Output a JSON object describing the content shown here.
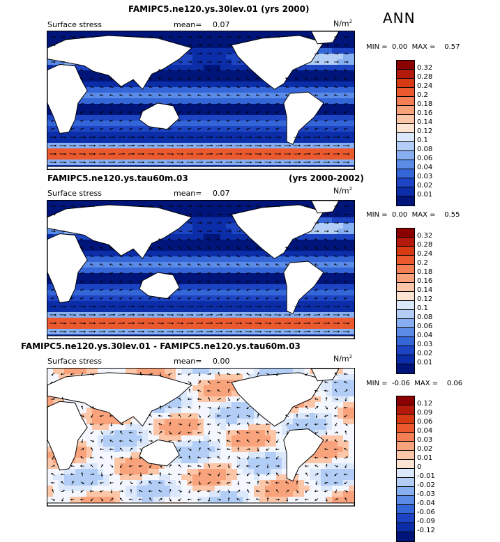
{
  "season_label": "ANN",
  "panels": [
    {
      "title_left": "FAMIPC5.ne120.ys.30lev.01 (yrs 2000)",
      "title_right": "",
      "variable": "Surface stress",
      "mean_label": "mean=",
      "mean_value": "0.07",
      "units_base": "N/m",
      "units_exp": "2",
      "min_label": "MIN =",
      "min_value": "0.00",
      "max_label": "MAX =",
      "max_value": "0.57",
      "colorbar_ticks": [
        "0.32",
        "0.28",
        "0.24",
        "0.2",
        "0.18",
        "0.16",
        "0.14",
        "0.12",
        "0.1",
        "0.08",
        "0.06",
        "0.04",
        "0.03",
        "0.02",
        "0.01"
      ],
      "colors": [
        "#8b0000",
        "#b41a0c",
        "#d63a12",
        "#ea5a2e",
        "#f57f54",
        "#f9a37d",
        "#fcc6a8",
        "#fde3d2",
        "#dbe8fb",
        "#b3cef6",
        "#86aef0",
        "#5a8be6",
        "#3566d8",
        "#1d45c3",
        "#0c2da8",
        "#00157a"
      ]
    },
    {
      "title_left": "FAMIPC5.ne120.ys.tau60m.03",
      "title_right": "(yrs 2000-2002)",
      "variable": "Surface stress",
      "mean_label": "mean=",
      "mean_value": "0.07",
      "units_base": "N/m",
      "units_exp": "2",
      "min_label": "MIN =",
      "min_value": "0.00",
      "max_label": "MAX =",
      "max_value": "0.55",
      "colorbar_ticks": [
        "0.32",
        "0.28",
        "0.24",
        "0.2",
        "0.18",
        "0.16",
        "0.14",
        "0.12",
        "0.1",
        "0.08",
        "0.06",
        "0.04",
        "0.03",
        "0.02",
        "0.01"
      ],
      "colors": [
        "#8b0000",
        "#b41a0c",
        "#d63a12",
        "#ea5a2e",
        "#f57f54",
        "#f9a37d",
        "#fcc6a8",
        "#fde3d2",
        "#dbe8fb",
        "#b3cef6",
        "#86aef0",
        "#5a8be6",
        "#3566d8",
        "#1d45c3",
        "#0c2da8",
        "#00157a"
      ]
    },
    {
      "title_left": "FAMIPC5.ne120.ys.30lev.01 - FAMIPC5.ne120.ys.tau60m.03",
      "title_right": "",
      "variable": "Surface stress",
      "mean_label": "mean=",
      "mean_value": "0.00",
      "units_base": "N/m",
      "units_exp": "2",
      "min_label": "MIN =",
      "min_value": "-0.06",
      "max_label": "MAX =",
      "max_value": "0.06",
      "colorbar_ticks": [
        "0.12",
        "0.09",
        "0.06",
        "0.04",
        "0.03",
        "0.02",
        "0.01",
        "0",
        "-0.01",
        "-0.02",
        "-0.03",
        "-0.04",
        "-0.06",
        "-0.09",
        "-0.12"
      ],
      "colors": [
        "#8b0000",
        "#b41a0c",
        "#d63a12",
        "#ea5a2e",
        "#f57f54",
        "#f9a37d",
        "#fcc6a8",
        "#fde3d2",
        "#dbe8fb",
        "#b3cef6",
        "#86aef0",
        "#5a8be6",
        "#3566d8",
        "#1d45c3",
        "#0c2da8",
        "#00157a"
      ]
    }
  ],
  "colors": {
    "land": "#ffffff",
    "strong_wind": "#e05a2b",
    "ocean_mid": "#3f73dc",
    "ocean_light": "#86aef0",
    "diff_neutral": "#e6eefb"
  }
}
